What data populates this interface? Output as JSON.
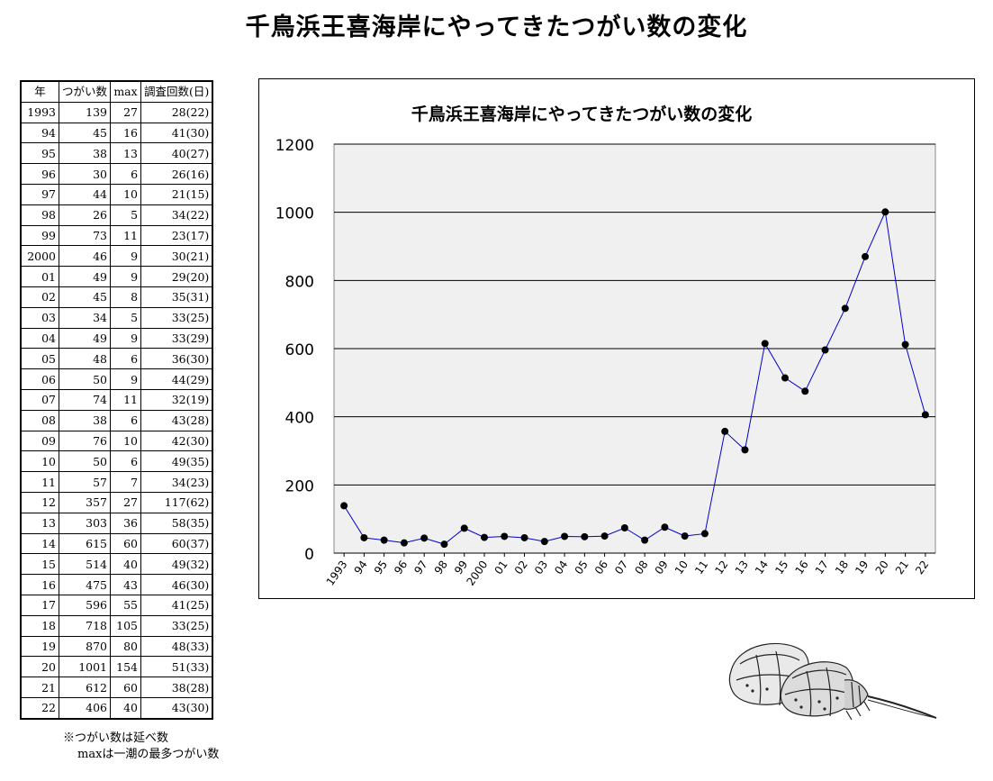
{
  "title": "千鳥浜王喜海岸にやってきたつがい数の変化",
  "table": {
    "headers": [
      "年",
      "つがい数",
      "max",
      "調査回数(日)"
    ],
    "rows": [
      [
        "1993",
        "139",
        "27",
        "28(22)"
      ],
      [
        "94",
        "45",
        "16",
        "41(30)"
      ],
      [
        "95",
        "38",
        "13",
        "40(27)"
      ],
      [
        "96",
        "30",
        "6",
        "26(16)"
      ],
      [
        "97",
        "44",
        "10",
        "21(15)"
      ],
      [
        "98",
        "26",
        "5",
        "34(22)"
      ],
      [
        "99",
        "73",
        "11",
        "23(17)"
      ],
      [
        "2000",
        "46",
        "9",
        "30(21)"
      ],
      [
        "01",
        "49",
        "9",
        "29(20)"
      ],
      [
        "02",
        "45",
        "8",
        "35(31)"
      ],
      [
        "03",
        "34",
        "5",
        "33(25)"
      ],
      [
        "04",
        "49",
        "9",
        "33(29)"
      ],
      [
        "05",
        "48",
        "6",
        "36(30)"
      ],
      [
        "06",
        "50",
        "9",
        "44(29)"
      ],
      [
        "07",
        "74",
        "11",
        "32(19)"
      ],
      [
        "08",
        "38",
        "6",
        "43(28)"
      ],
      [
        "09",
        "76",
        "10",
        "42(30)"
      ],
      [
        "10",
        "50",
        "6",
        "49(35)"
      ],
      [
        "11",
        "57",
        "7",
        "34(23)"
      ],
      [
        "12",
        "357",
        "27",
        "117(62)"
      ],
      [
        "13",
        "303",
        "36",
        "58(35)"
      ],
      [
        "14",
        "615",
        "60",
        "60(37)"
      ],
      [
        "15",
        "514",
        "40",
        "49(32)"
      ],
      [
        "16",
        "475",
        "43",
        "46(30)"
      ],
      [
        "17",
        "596",
        "55",
        "41(25)"
      ],
      [
        "18",
        "718",
        "105",
        "33(25)"
      ],
      [
        "19",
        "870",
        "80",
        "48(33)"
      ],
      [
        "20",
        "1001",
        "154",
        "51(33)"
      ],
      [
        "21",
        "612",
        "60",
        "38(28)"
      ],
      [
        "22",
        "406",
        "40",
        "43(30)"
      ]
    ]
  },
  "footnote": {
    "line1": "※つがい数は延べ数",
    "line2": "maxは一潮の最多つがい数"
  },
  "chart_data": {
    "type": "line",
    "title": "千鳥浜王喜海岸にやってきたつがい数の変化",
    "xlabel": "",
    "ylabel": "",
    "categories": [
      "1993",
      "94",
      "95",
      "96",
      "97",
      "98",
      "99",
      "2000",
      "01",
      "02",
      "03",
      "04",
      "05",
      "06",
      "07",
      "08",
      "09",
      "10",
      "11",
      "12",
      "13",
      "14",
      "15",
      "16",
      "17",
      "18",
      "19",
      "20",
      "21",
      "22"
    ],
    "values": [
      139,
      45,
      38,
      30,
      44,
      26,
      73,
      46,
      49,
      45,
      34,
      49,
      48,
      50,
      74,
      38,
      76,
      50,
      57,
      357,
      303,
      615,
      514,
      475,
      596,
      718,
      870,
      1001,
      612,
      406
    ],
    "ylim": [
      0,
      1200
    ],
    "yticks": [
      0,
      200,
      400,
      600,
      800,
      1000,
      1200
    ],
    "grid": true,
    "legend": "none",
    "line_color": "#0000cc",
    "marker_color": "#000000",
    "plot_background": "#f0f0f0"
  }
}
